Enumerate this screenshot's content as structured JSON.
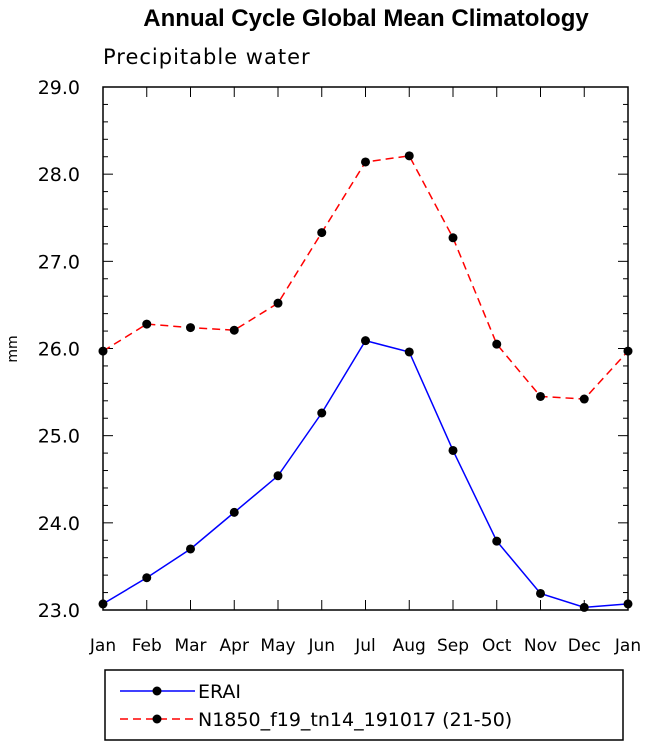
{
  "chart_data": {
    "type": "line",
    "title": "Annual Cycle Global Mean Climatology",
    "subtitle": "Precipitable water",
    "xlabel": "",
    "ylabel": "mm",
    "ylim": [
      23.0,
      29.0
    ],
    "yticks": [
      "23.0",
      "24.0",
      "25.0",
      "26.0",
      "27.0",
      "28.0",
      "29.0"
    ],
    "categories": [
      "Jan",
      "Feb",
      "Mar",
      "Apr",
      "May",
      "Jun",
      "Jul",
      "Aug",
      "Sep",
      "Oct",
      "Nov",
      "Dec",
      "Jan"
    ],
    "series": [
      {
        "name": "ERAI",
        "color": "#0000ff",
        "style": "solid",
        "values": [
          23.07,
          23.37,
          23.7,
          24.12,
          24.54,
          25.26,
          26.09,
          25.96,
          24.83,
          23.79,
          23.19,
          23.03,
          23.07
        ]
      },
      {
        "name": "N1850_f19_tn14_191017 (21-50)",
        "color": "#ff0000",
        "style": "dashed",
        "values": [
          25.97,
          26.28,
          26.24,
          26.21,
          26.52,
          27.33,
          28.14,
          28.21,
          27.27,
          26.05,
          25.45,
          25.42,
          25.97
        ]
      }
    ],
    "legend_position": "bottom"
  }
}
